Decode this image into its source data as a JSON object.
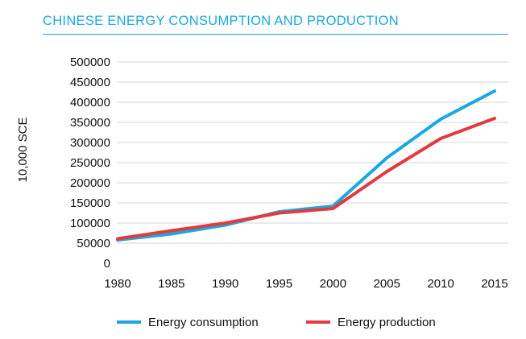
{
  "colors": {
    "consumption": "#1ba7df",
    "production": "#e23b3f",
    "grid": "#d4d4d4",
    "title": "#1ba7df"
  },
  "chart_data": {
    "type": "line",
    "title": "CHINESE ENERGY CONSUMPTION AND PRODUCTION",
    "xlabel": "",
    "ylabel": "10,000 SCE",
    "ylim": [
      0,
      500000
    ],
    "y_ticks": [
      "0",
      "50000",
      "100000",
      "150000",
      "200000",
      "250000",
      "300000",
      "350000",
      "400000",
      "450000",
      "500000"
    ],
    "categories": [
      "1980",
      "1985",
      "1990",
      "1995",
      "2000",
      "2005",
      "2010",
      "2015"
    ],
    "series": [
      {
        "name": "Energy consumption",
        "color": "#1ba7df",
        "values": [
          58000,
          73000,
          95000,
          128000,
          142000,
          262000,
          358000,
          428000
        ]
      },
      {
        "name": "Energy production",
        "color": "#e23b3f",
        "values": [
          61000,
          81000,
          100000,
          125000,
          136000,
          228000,
          310000,
          360000
        ]
      }
    ],
    "grid": true,
    "legend": "bottom"
  }
}
